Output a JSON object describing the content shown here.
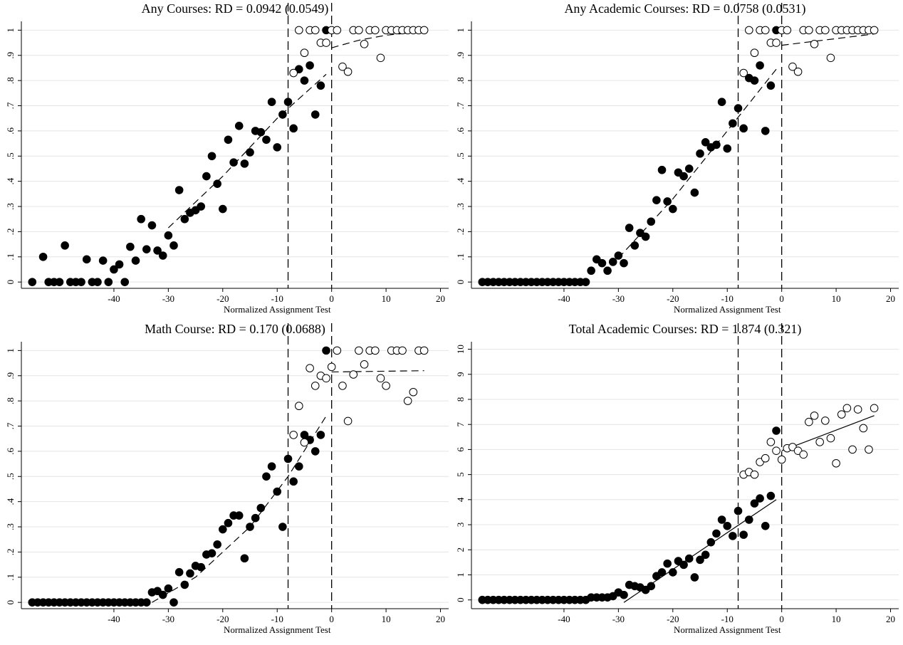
{
  "chart_data": [
    {
      "type": "scatter",
      "title": "Any Courses: RD = 0.0942 (0.0549)",
      "x_label": "Normalized Assignment Test",
      "xlim": [
        -57,
        21.5
      ],
      "ylim": [
        -0.025,
        1.035
      ],
      "xticks": [
        -40,
        -30,
        -20,
        -10,
        0,
        10,
        20
      ],
      "yticks": [
        0,
        {
          "value": 0.1,
          "label": ".1"
        },
        {
          "value": 0.2,
          "label": ".2"
        },
        {
          "value": 0.3,
          "label": ".3"
        },
        {
          "value": 0.4,
          "label": ".4"
        },
        {
          "value": 0.5,
          "label": ".5"
        },
        {
          "value": 0.6,
          "label": ".6"
        },
        {
          "value": 0.7,
          "label": ".7"
        },
        {
          "value": 0.8,
          "label": ".8"
        },
        {
          "value": 0.9,
          "label": ".9"
        },
        1
      ],
      "grid": true,
      "vlines": [
        -8,
        0
      ],
      "fit_style": "dashed",
      "series": [
        {
          "marker": "filled",
          "color": "#000000",
          "x": [
            -55,
            -53,
            -52,
            -51,
            -50,
            -49,
            -48,
            -47,
            -46,
            -45,
            -44,
            -43,
            -42,
            -41,
            -40,
            -39,
            -38,
            -37,
            -36,
            -35,
            -34,
            -33,
            -32,
            -31,
            -30,
            -29,
            -28,
            -27,
            -26,
            -25,
            -24,
            -23,
            -22,
            -21,
            -20,
            -19,
            -18,
            -17,
            -16,
            -15,
            -14,
            -13,
            -12,
            -11,
            -10,
            -9,
            -8,
            -7,
            -6,
            -5,
            -4,
            -3,
            -2,
            -1
          ],
          "values": [
            0,
            0.1,
            0,
            0,
            0,
            0.145,
            0,
            0,
            0,
            0.09,
            0,
            0,
            0.085,
            0,
            0.05,
            0.07,
            0,
            0.14,
            0.085,
            0.25,
            0.13,
            0.225,
            0.125,
            0.105,
            0.185,
            0.145,
            0.365,
            0.25,
            0.275,
            0.285,
            0.3,
            0.42,
            0.5,
            0.39,
            0.29,
            0.565,
            0.475,
            0.62,
            0.47,
            0.515,
            0.6,
            0.595,
            0.565,
            0.715,
            0.535,
            0.665,
            0.715,
            0.61,
            0.845,
            0.8,
            0.86,
            0.665,
            0.78,
            1
          ]
        },
        {
          "marker": "open",
          "color": "#000000",
          "x": [
            -7,
            -6,
            -5,
            -4,
            -3,
            -2,
            -1,
            0,
            1,
            2,
            3,
            4,
            5,
            6,
            7,
            8,
            9,
            10,
            11,
            12,
            13,
            14,
            15,
            16,
            17
          ],
          "values": [
            0.83,
            1,
            0.91,
            1,
            1,
            0.95,
            0.95,
            1,
            1,
            0.855,
            0.835,
            1,
            1,
            0.945,
            1,
            1,
            0.89,
            1,
            1,
            1,
            1,
            1,
            1,
            1,
            1
          ]
        }
      ],
      "fits": [
        {
          "x": [
            -30,
            -20,
            -10,
            -1
          ],
          "values": [
            0.215,
            0.42,
            0.65,
            0.825
          ]
        },
        {
          "x": [
            0,
            5,
            10,
            17
          ],
          "values": [
            0.93,
            0.96,
            0.98,
            0.995
          ]
        }
      ]
    },
    {
      "type": "scatter",
      "title": "Any Academic Courses: RD = 0.0758 (0.0531)",
      "x_label": "Normalized Assignment Test",
      "xlim": [
        -57,
        21.5
      ],
      "ylim": [
        -0.025,
        1.035
      ],
      "xticks": [
        -40,
        -30,
        -20,
        -10,
        0,
        10,
        20
      ],
      "yticks": [
        0,
        {
          "value": 0.1,
          "label": ".1"
        },
        {
          "value": 0.2,
          "label": ".2"
        },
        {
          "value": 0.3,
          "label": ".3"
        },
        {
          "value": 0.4,
          "label": ".4"
        },
        {
          "value": 0.5,
          "label": ".5"
        },
        {
          "value": 0.6,
          "label": ".6"
        },
        {
          "value": 0.7,
          "label": ".7"
        },
        {
          "value": 0.8,
          "label": ".8"
        },
        {
          "value": 0.9,
          "label": ".9"
        },
        1
      ],
      "grid": true,
      "vlines": [
        -8,
        0
      ],
      "fit_style": "dashed",
      "series": [
        {
          "marker": "filled",
          "color": "#000000",
          "x": [
            -55,
            -54,
            -53,
            -52,
            -51,
            -50,
            -49,
            -48,
            -47,
            -46,
            -45,
            -44,
            -43,
            -42,
            -41,
            -40,
            -39,
            -38,
            -37,
            -36,
            -35,
            -34,
            -33,
            -32,
            -31,
            -30,
            -29,
            -28,
            -27,
            -26,
            -25,
            -24,
            -23,
            -22,
            -21,
            -20,
            -19,
            -18,
            -17,
            -16,
            -15,
            -14,
            -13,
            -12,
            -11,
            -10,
            -9,
            -8,
            -7,
            -6,
            -5,
            -4,
            -3,
            -2,
            -1
          ],
          "values": [
            0,
            0,
            0,
            0,
            0,
            0,
            0,
            0,
            0,
            0,
            0,
            0,
            0,
            0,
            0,
            0,
            0,
            0,
            0,
            0,
            0.045,
            0.09,
            0.075,
            0.045,
            0.08,
            0.105,
            0.075,
            0.215,
            0.145,
            0.195,
            0.18,
            0.24,
            0.325,
            0.445,
            0.32,
            0.29,
            0.435,
            0.42,
            0.45,
            0.355,
            0.51,
            0.555,
            0.535,
            0.545,
            0.715,
            0.53,
            0.63,
            0.69,
            0.61,
            0.81,
            0.8,
            0.86,
            0.6,
            0.78,
            1
          ]
        },
        {
          "marker": "open",
          "color": "#000000",
          "x": [
            -7,
            -6,
            -5,
            -4,
            -3,
            -2,
            -1,
            0,
            1,
            2,
            3,
            4,
            5,
            6,
            7,
            8,
            9,
            10,
            11,
            12,
            13,
            14,
            15,
            16,
            17
          ],
          "values": [
            0.83,
            1,
            0.91,
            1,
            1,
            0.95,
            0.95,
            1,
            1,
            0.855,
            0.835,
            1,
            1,
            0.945,
            1,
            1,
            0.89,
            1,
            1,
            1,
            1,
            1,
            1,
            1,
            1
          ]
        }
      ],
      "fits": [
        {
          "x": [
            -30,
            -20,
            -10,
            -1
          ],
          "values": [
            0.095,
            0.33,
            0.6,
            0.845
          ]
        },
        {
          "x": [
            0,
            17
          ],
          "values": [
            0.94,
            0.985
          ]
        }
      ]
    },
    {
      "type": "scatter",
      "title": "Math Course: RD = 0.170 (0.0688)",
      "x_label": "Normalized Assignment Test",
      "xlim": [
        -57,
        21.5
      ],
      "ylim": [
        -0.025,
        1.035
      ],
      "xticks": [
        -40,
        -30,
        -20,
        -10,
        0,
        10,
        20
      ],
      "yticks": [
        0,
        {
          "value": 0.1,
          "label": ".1"
        },
        {
          "value": 0.2,
          "label": ".2"
        },
        {
          "value": 0.3,
          "label": ".3"
        },
        {
          "value": 0.4,
          "label": ".4"
        },
        {
          "value": 0.5,
          "label": ".5"
        },
        {
          "value": 0.6,
          "label": ".6"
        },
        {
          "value": 0.7,
          "label": ".7"
        },
        {
          "value": 0.8,
          "label": ".8"
        },
        {
          "value": 0.9,
          "label": ".9"
        },
        1
      ],
      "grid": true,
      "vlines": [
        -8,
        0
      ],
      "fit_style": "dashed",
      "series": [
        {
          "marker": "filled",
          "color": "#000000",
          "x": [
            -55,
            -54,
            -53,
            -52,
            -51,
            -50,
            -49,
            -48,
            -47,
            -46,
            -45,
            -44,
            -43,
            -42,
            -41,
            -40,
            -39,
            -38,
            -37,
            -36,
            -35,
            -34,
            -33,
            -32,
            -31,
            -30,
            -29,
            -28,
            -27,
            -26,
            -25,
            -24,
            -23,
            -22,
            -21,
            -20,
            -19,
            -18,
            -17,
            -16,
            -15,
            -14,
            -13,
            -12,
            -11,
            -10,
            -9,
            -8,
            -7,
            -6,
            -5,
            -4,
            -3,
            -2,
            -1
          ],
          "values": [
            0,
            0,
            0,
            0,
            0,
            0,
            0,
            0,
            0,
            0,
            0,
            0,
            0,
            0,
            0,
            0,
            0,
            0,
            0,
            0,
            0,
            0,
            0.04,
            0.045,
            0.03,
            0.055,
            0,
            0.12,
            0.07,
            0.115,
            0.145,
            0.14,
            0.19,
            0.195,
            0.23,
            0.29,
            0.315,
            0.345,
            0.345,
            0.175,
            0.3,
            0.335,
            0.375,
            0.5,
            0.54,
            0.44,
            0.3,
            0.57,
            0.48,
            0.54,
            0.665,
            0.645,
            0.6,
            0.665,
            1
          ]
        },
        {
          "marker": "open",
          "color": "#000000",
          "x": [
            -7,
            -6,
            -5,
            -4,
            -3,
            -2,
            -1,
            0,
            1,
            2,
            3,
            4,
            5,
            6,
            7,
            8,
            9,
            10,
            11,
            12,
            13,
            14,
            15,
            16,
            17
          ],
          "values": [
            0.665,
            0.78,
            0.635,
            0.93,
            0.86,
            0.9,
            0.89,
            0.935,
            1,
            0.86,
            0.72,
            0.905,
            1,
            0.945,
            1,
            1,
            0.89,
            0.86,
            1,
            1,
            1,
            0.8,
            0.835,
            1,
            1
          ]
        }
      ],
      "fits": [
        {
          "x": [
            -33,
            -25,
            -15,
            -8,
            -1
          ],
          "values": [
            0,
            0.1,
            0.3,
            0.5,
            0.74
          ]
        },
        {
          "x": [
            0,
            17
          ],
          "values": [
            0.915,
            0.92
          ]
        }
      ]
    },
    {
      "type": "scatter",
      "title": "Total Academic Courses: RD = 1.874 (0.321)",
      "x_label": "Normalized Assignment Test",
      "xlim": [
        -57,
        21.5
      ],
      "ylim": [
        -0.35,
        10.3
      ],
      "xticks": [
        -40,
        -30,
        -20,
        -10,
        0,
        10,
        20
      ],
      "yticks": [
        0,
        1,
        2,
        3,
        4,
        5,
        6,
        7,
        8,
        9,
        10
      ],
      "grid": true,
      "vlines": [
        -8,
        0
      ],
      "fit_style": "solid",
      "series": [
        {
          "marker": "filled",
          "color": "#000000",
          "x": [
            -55,
            -54,
            -53,
            -52,
            -51,
            -50,
            -49,
            -48,
            -47,
            -46,
            -45,
            -44,
            -43,
            -42,
            -41,
            -40,
            -39,
            -38,
            -37,
            -36,
            -35,
            -34,
            -33,
            -32,
            -31,
            -30,
            -29,
            -28,
            -27,
            -26,
            -25,
            -24,
            -23,
            -22,
            -21,
            -20,
            -19,
            -18,
            -17,
            -16,
            -15,
            -14,
            -13,
            -12,
            -11,
            -10,
            -9,
            -8,
            -7,
            -6,
            -5,
            -4,
            -3,
            -2,
            -1
          ],
          "values": [
            0,
            0,
            0,
            0,
            0,
            0,
            0,
            0,
            0,
            0,
            0,
            0,
            0,
            0,
            0,
            0,
            0,
            0,
            0,
            0,
            0.1,
            0.1,
            0.1,
            0.1,
            0.15,
            0.3,
            0.2,
            0.6,
            0.55,
            0.5,
            0.4,
            0.55,
            0.95,
            1.1,
            1.45,
            1.1,
            1.55,
            1.4,
            1.65,
            0.9,
            1.6,
            1.8,
            2.3,
            2.65,
            3.2,
            2.95,
            2.55,
            3.55,
            2.6,
            3.2,
            3.85,
            4.05,
            2.95,
            4.15,
            6.75
          ]
        },
        {
          "marker": "open",
          "color": "#000000",
          "x": [
            -7,
            -6,
            -5,
            -4,
            -3,
            -2,
            -1,
            0,
            1,
            2,
            3,
            4,
            5,
            6,
            7,
            8,
            9,
            10,
            11,
            12,
            13,
            14,
            15,
            16,
            17
          ],
          "values": [
            5,
            5.1,
            5,
            5.5,
            5.65,
            6.3,
            5.95,
            5.6,
            6.05,
            6.1,
            5.95,
            5.8,
            7.1,
            7.35,
            6.3,
            7.15,
            6.45,
            5.45,
            7.4,
            7.65,
            6,
            7.6,
            6.85,
            6,
            7.65
          ]
        }
      ],
      "fits": [
        {
          "x": [
            -29,
            -1
          ],
          "values": [
            -0.1,
            4
          ]
        },
        {
          "x": [
            0,
            17
          ],
          "values": [
            5.95,
            7.35
          ]
        }
      ]
    }
  ]
}
